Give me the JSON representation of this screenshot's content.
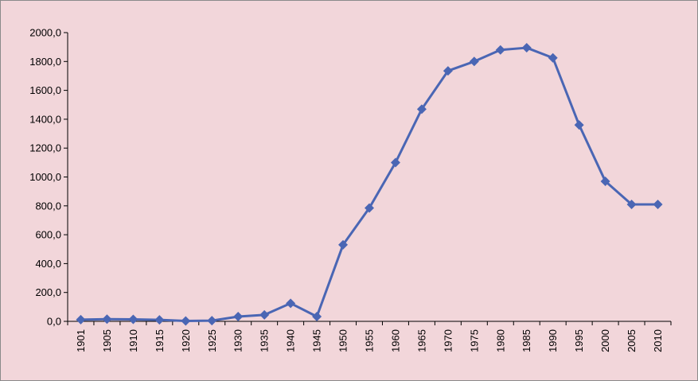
{
  "chart_data": {
    "type": "line",
    "title": "",
    "xlabel": "",
    "ylabel": "",
    "ylim": [
      0,
      2000
    ],
    "y_ticks": [
      "0,0",
      "200,0",
      "400,0",
      "600,0",
      "800,0",
      "1000,0",
      "1200,0",
      "1400,0",
      "1600,0",
      "1800,0",
      "2000,0"
    ],
    "grid": false,
    "legend": "none",
    "marker": "diamond",
    "x": [
      "1901",
      "1905",
      "1910",
      "1915",
      "1920",
      "1925",
      "1930",
      "1935",
      "1940",
      "1945",
      "1950",
      "1955",
      "1960",
      "1965",
      "1970",
      "1975",
      "1980",
      "1985",
      "1990",
      "1995",
      "2000",
      "2005",
      "2010"
    ],
    "series": [
      {
        "values": [
          12,
          15,
          14,
          10,
          3,
          5,
          33,
          45,
          125,
          33,
          530,
          785,
          1100,
          1470,
          1735,
          1800,
          1880,
          1895,
          1825,
          1360,
          970,
          810,
          810
        ]
      }
    ],
    "colors": {
      "background": "#f2d6da",
      "line": "#4a66b4",
      "axis": "#000000"
    }
  }
}
